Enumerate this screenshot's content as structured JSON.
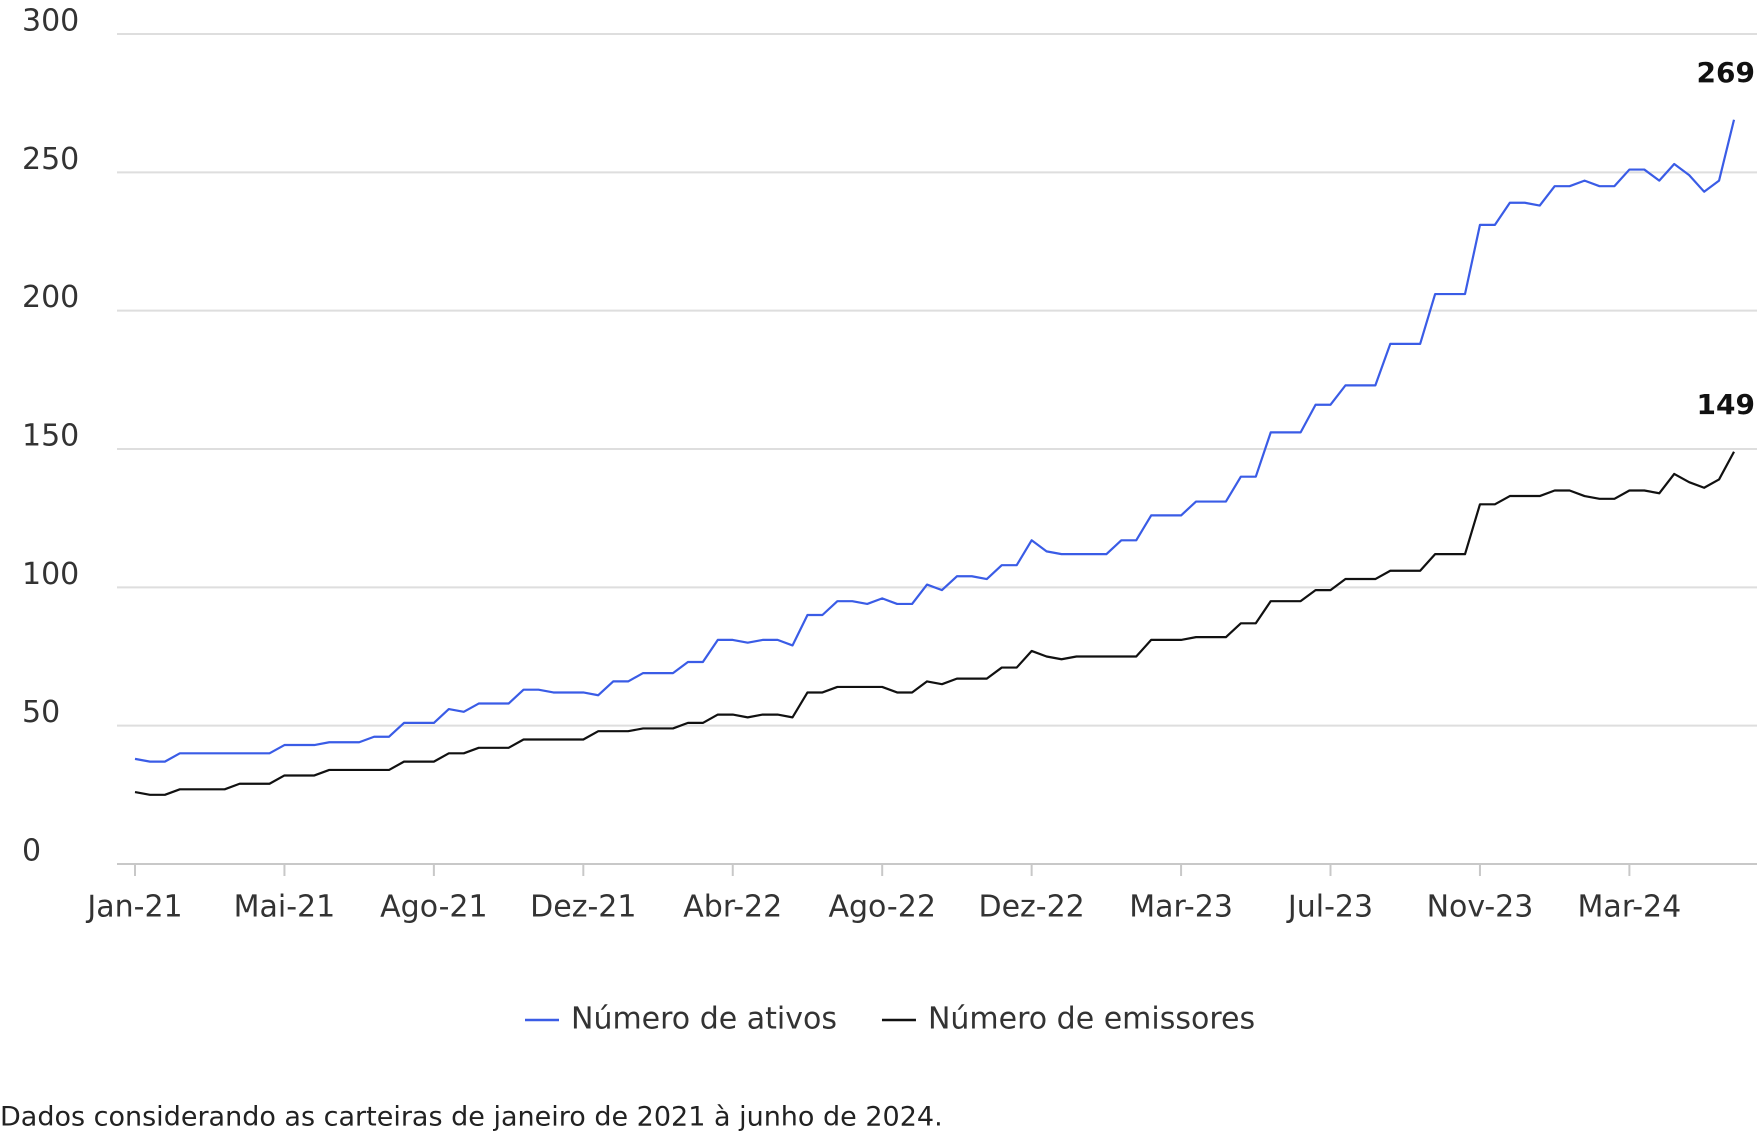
{
  "chart_data": {
    "type": "line",
    "categories": [
      "Jan-21",
      null,
      null,
      null,
      null,
      null,
      null,
      null,
      null,
      null,
      "Mai-21",
      null,
      null,
      null,
      null,
      null,
      null,
      null,
      null,
      null,
      "Ago-21",
      null,
      null,
      null,
      null,
      null,
      null,
      null,
      null,
      null,
      "Dez-21",
      null,
      null,
      null,
      null,
      null,
      null,
      null,
      null,
      null,
      "Abr-22",
      null,
      null,
      null,
      null,
      null,
      null,
      null,
      null,
      null,
      "Ago-22",
      null,
      null,
      null,
      null,
      null,
      null,
      null,
      null,
      null,
      "Dez-22",
      null,
      null,
      null,
      null,
      null,
      null,
      null,
      null,
      null,
      "Mar-23",
      null,
      null,
      null,
      null,
      null,
      null,
      null,
      null,
      null,
      "Jul-23",
      null,
      null,
      null,
      null,
      null,
      null,
      null,
      null,
      null,
      "Nov-23",
      null,
      null,
      null,
      null,
      null,
      null,
      null,
      null,
      null,
      "Mar-24",
      null,
      null,
      null,
      null,
      null,
      null,
      null
    ],
    "series": [
      {
        "name": "Número de ativos",
        "color": "#3a5ce6",
        "values": [
          38,
          37,
          37,
          40,
          40,
          40,
          40,
          40,
          40,
          40,
          43,
          43,
          43,
          44,
          44,
          44,
          46,
          46,
          51,
          51,
          51,
          56,
          55,
          58,
          58,
          58,
          63,
          63,
          62,
          62,
          62,
          61,
          66,
          66,
          69,
          69,
          69,
          73,
          73,
          81,
          81,
          80,
          81,
          81,
          79,
          90,
          90,
          95,
          95,
          94,
          96,
          94,
          94,
          101,
          99,
          104,
          104,
          103,
          108,
          108,
          117,
          113,
          112,
          112,
          112,
          112,
          117,
          117,
          126,
          126,
          126,
          131,
          131,
          131,
          140,
          140,
          156,
          156,
          156,
          166,
          166,
          173,
          173,
          173,
          188,
          188,
          188,
          206,
          206,
          206,
          231,
          231,
          239,
          239,
          238,
          245,
          245,
          247,
          245,
          245,
          251,
          251,
          247,
          253,
          249,
          243,
          247,
          269
        ]
      },
      {
        "name": "Número de emissores",
        "color": "#111111",
        "values": [
          26,
          25,
          25,
          27,
          27,
          27,
          27,
          29,
          29,
          29,
          32,
          32,
          32,
          34,
          34,
          34,
          34,
          34,
          37,
          37,
          37,
          40,
          40,
          42,
          42,
          42,
          45,
          45,
          45,
          45,
          45,
          48,
          48,
          48,
          49,
          49,
          49,
          51,
          51,
          54,
          54,
          53,
          54,
          54,
          53,
          62,
          62,
          64,
          64,
          64,
          64,
          62,
          62,
          66,
          65,
          67,
          67,
          67,
          71,
          71,
          77,
          75,
          74,
          75,
          75,
          75,
          75,
          75,
          81,
          81,
          81,
          82,
          82,
          82,
          87,
          87,
          95,
          95,
          95,
          99,
          99,
          103,
          103,
          103,
          106,
          106,
          106,
          112,
          112,
          112,
          130,
          130,
          133,
          133,
          133,
          135,
          135,
          133,
          132,
          132,
          135,
          135,
          134,
          141,
          138,
          136,
          139,
          149
        ]
      }
    ],
    "ylim": [
      0,
      300
    ],
    "yticks": [
      0,
      50,
      100,
      150,
      200,
      250,
      300
    ],
    "grid": true,
    "legend": "bottom",
    "footnote": "Dados considerando as carteiras de janeiro de 2021 à junho de 2024."
  }
}
